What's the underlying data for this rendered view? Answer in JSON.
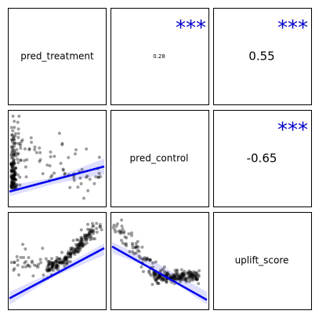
{
  "chart_data": {
    "type": "scatter",
    "layout": "pairs-matrix",
    "variables": [
      "pred_treatment",
      "pred_control",
      "uplift_score"
    ],
    "upper": [
      {
        "pair": [
          "pred_treatment",
          "pred_control"
        ],
        "correlation": "0.28",
        "stars": "***"
      },
      {
        "pair": [
          "pred_treatment",
          "uplift_score"
        ],
        "correlation": "0.55",
        "stars": "***"
      },
      {
        "pair": [
          "pred_control",
          "uplift_score"
        ],
        "correlation": "-0.65",
        "stars": "***"
      }
    ],
    "lower": [
      {
        "pair": [
          "pred_treatment",
          "pred_control"
        ],
        "fit": "linear",
        "band": "confidence"
      },
      {
        "pair": [
          "pred_treatment",
          "uplift_score"
        ],
        "fit": "linear",
        "band": "confidence"
      },
      {
        "pair": [
          "pred_control",
          "uplift_score"
        ],
        "fit": "linear",
        "band": "confidence"
      }
    ],
    "colors": {
      "points": "#000000",
      "fit": "#0000ee",
      "band": "#3333ff",
      "stars": "#0000cc"
    }
  }
}
